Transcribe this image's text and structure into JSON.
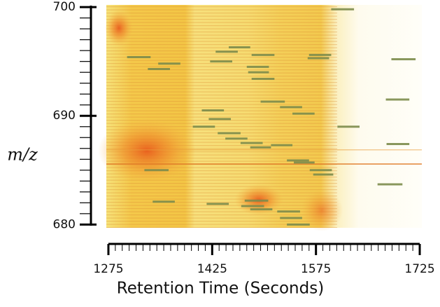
{
  "chart_data": {
    "type": "segments",
    "xlabel": "Retention Time (Seconds)",
    "ylabel": "m/z",
    "xlim": [
      1272,
      1728
    ],
    "ylim": [
      679.7,
      700.2
    ],
    "xticks": [
      1275,
      1425,
      1575,
      1725
    ],
    "yticks": [
      680,
      690,
      700
    ],
    "x_minor_ticks": [
      1285,
      1295,
      1305,
      1315,
      1325,
      1335,
      1345,
      1355,
      1365,
      1375,
      1385,
      1395,
      1405,
      1415,
      1435,
      1445,
      1455,
      1465,
      1475,
      1485,
      1495,
      1505,
      1515,
      1525,
      1535,
      1545,
      1555,
      1565,
      1585,
      1595,
      1605,
      1615,
      1625,
      1635,
      1645,
      1655,
      1665,
      1675,
      1685,
      1695,
      1705,
      1715
    ],
    "y_minor_ticks": [
      681,
      682,
      683,
      684,
      685,
      686,
      687,
      688,
      689,
      691,
      692,
      693,
      694,
      695,
      696,
      697,
      698,
      699
    ],
    "color": "#7d8c4c",
    "x_start": [
      1302,
      1332,
      1347,
      1422,
      1430,
      1449,
      1482,
      1475,
      1477,
      1482,
      1495,
      1410,
      1420,
      1397,
      1433,
      1444,
      1466,
      1480,
      1510,
      1523,
      1541,
      1565,
      1563,
      1606,
      1533,
      1543,
      1566,
      1571,
      1327,
      1664,
      1676,
      1677,
      1684,
      1597,
      1339,
      1417,
      1467,
      1480,
      1519,
      1523,
      1533,
      1472
    ],
    "x_end": [
      1336,
      1364,
      1379,
      1454,
      1462,
      1480,
      1515,
      1507,
      1507,
      1515,
      1530,
      1442,
      1452,
      1429,
      1466,
      1476,
      1498,
      1510,
      1541,
      1555,
      1573,
      1597,
      1594,
      1638,
      1565,
      1573,
      1598,
      1600,
      1362,
      1700,
      1710,
      1710,
      1719,
      1630,
      1371,
      1449,
      1500,
      1512,
      1552,
      1555,
      1566,
      1506
    ],
    "values": [
      695.4,
      694.3,
      694.8,
      695.0,
      695.9,
      696.3,
      695.6,
      694.5,
      694.0,
      693.4,
      691.3,
      690.5,
      689.7,
      689.0,
      688.4,
      687.9,
      687.5,
      687.1,
      687.3,
      690.8,
      690.2,
      695.6,
      695.3,
      689.0,
      685.9,
      685.7,
      685.0,
      684.6,
      685.0,
      683.7,
      691.5,
      687.4,
      695.2,
      699.8,
      682.1,
      681.9,
      681.7,
      681.4,
      681.2,
      680.6,
      680.0,
      682.2
    ]
  }
}
